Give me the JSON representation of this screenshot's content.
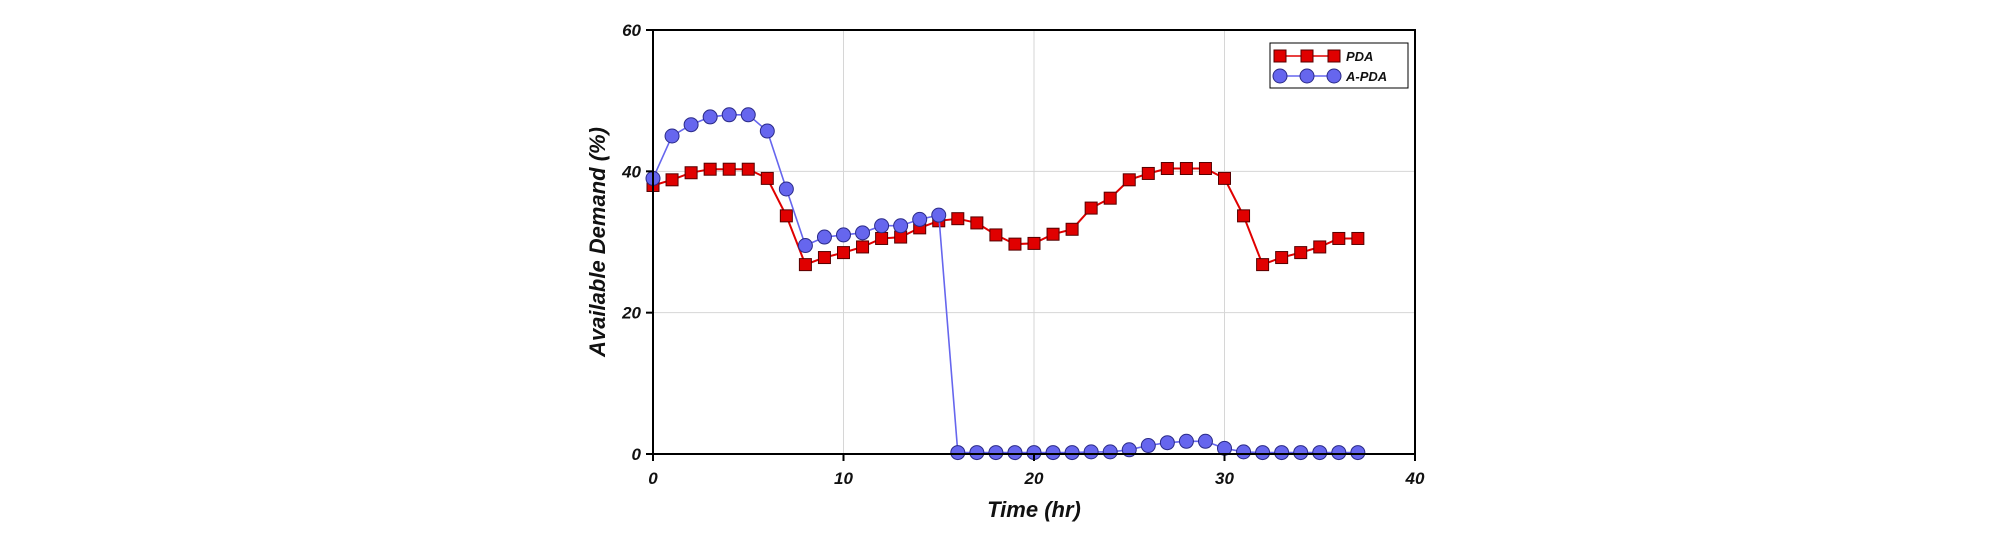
{
  "chart_data": {
    "type": "line",
    "title": "",
    "xlabel": "Time (hr)",
    "ylabel": "Available Demand (%)",
    "xlim": [
      0,
      40
    ],
    "ylim": [
      0,
      60
    ],
    "xticks": [
      0,
      10,
      20,
      30,
      40
    ],
    "yticks": [
      0,
      20,
      40,
      60
    ],
    "grid": true,
    "legend_position": "top-right",
    "series": [
      {
        "name": "PDA",
        "color": "#e00000",
        "marker": "square",
        "x": [
          0,
          1,
          2,
          3,
          4,
          5,
          6,
          7,
          8,
          9,
          10,
          11,
          12,
          13,
          14,
          15,
          16,
          17,
          18,
          19,
          20,
          21,
          22,
          23,
          24,
          25,
          26,
          27,
          28,
          29,
          30,
          31,
          32,
          33,
          34,
          35,
          36,
          37
        ],
        "values": [
          38,
          38.8,
          39.8,
          40.3,
          40.3,
          40.3,
          39,
          33.7,
          26.8,
          27.8,
          28.5,
          29.3,
          30.5,
          30.7,
          32,
          33,
          33.3,
          32.7,
          31,
          29.7,
          29.8,
          31.1,
          31.8,
          34.8,
          36.2,
          38.8,
          39.7,
          40.4,
          40.4,
          40.4,
          39.0,
          33.7,
          26.8,
          27.8,
          28.5,
          29.3,
          30.5,
          30.5
        ]
      },
      {
        "name": "A-PDA",
        "color": "#6666ee",
        "marker": "circle",
        "x": [
          0,
          1,
          2,
          3,
          4,
          5,
          6,
          7,
          8,
          9,
          10,
          11,
          12,
          13,
          14,
          15,
          16,
          17,
          18,
          19,
          20,
          21,
          22,
          23,
          24,
          25,
          26,
          27,
          28,
          29,
          30,
          31,
          32,
          33,
          34,
          35,
          36,
          37
        ],
        "values": [
          39,
          45,
          46.6,
          47.7,
          48,
          48,
          45.7,
          37.5,
          29.5,
          30.7,
          31,
          31.3,
          32.3,
          32.3,
          33.2,
          33.8,
          0.2,
          0.2,
          0.2,
          0.2,
          0.2,
          0.2,
          0.2,
          0.3,
          0.3,
          0.6,
          1.2,
          1.6,
          1.8,
          1.8,
          0.8,
          0.3,
          0.2,
          0.2,
          0.2,
          0.2,
          0.2,
          0.2
        ]
      }
    ]
  }
}
